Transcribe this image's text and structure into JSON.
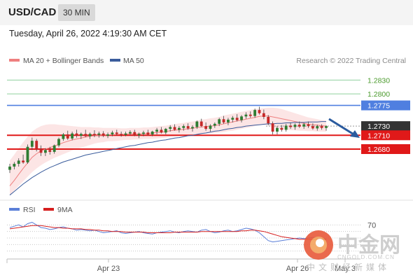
{
  "header": {
    "symbol": "USD/CAD",
    "timeframe": "30 MIN",
    "datetime": "Tuesday, April 26, 2022 4:19:30 AM CET"
  },
  "legend": {
    "ma20": "MA 20 + Bollinger Bands",
    "ma50": "MA 50",
    "credit": "Research © 2022 Trading Central",
    "rsi": "RSI",
    "ma9": "9MA"
  },
  "colors": {
    "ma20": "#ef7f7f",
    "band": "#fbdcdc",
    "ma50": "#3a5c9c",
    "green_level": "#8fd19e",
    "blue_level": "#4f7fe0",
    "red_level": "#e01919",
    "current": "#333333",
    "candle_up": "#2e7d32",
    "candle_down": "#c62828",
    "rsi": "#5b7fd8",
    "rsi_ma": "#d61f1f",
    "arrow": "#2b5b9e"
  },
  "watermark": {
    "brand": "中金网",
    "url": "CNGOLD.COM.CN",
    "sub": "中文财经新媒体"
  },
  "chart_data": [
    {
      "type": "candlestick",
      "ylim": [
        1.2575,
        1.2855
      ],
      "x_ticks": [
        "Apr 23",
        "Apr 26"
      ],
      "levels": [
        {
          "value": 1.283,
          "label": "1.2830",
          "kind": "green"
        },
        {
          "value": 1.28,
          "label": "1.2800",
          "kind": "green"
        },
        {
          "value": 1.2775,
          "label": "1.2775",
          "kind": "blue"
        },
        {
          "value": 1.273,
          "label": "1.2730",
          "kind": "current"
        },
        {
          "value": 1.271,
          "label": "1.2710",
          "kind": "red"
        },
        {
          "value": 1.268,
          "label": "1.2680",
          "kind": "red"
        }
      ],
      "ohlc": [
        [
          1.2635,
          1.2648,
          1.2628,
          1.2642
        ],
        [
          1.2642,
          1.2652,
          1.2636,
          1.2648
        ],
        [
          1.2648,
          1.266,
          1.2642,
          1.2655
        ],
        [
          1.2655,
          1.2668,
          1.2648,
          1.2651
        ],
        [
          1.2651,
          1.269,
          1.2648,
          1.2685
        ],
        [
          1.2685,
          1.2705,
          1.2678,
          1.2698
        ],
        [
          1.2698,
          1.2702,
          1.2675,
          1.268
        ],
        [
          1.268,
          1.2688,
          1.2665,
          1.2672
        ],
        [
          1.2672,
          1.2682,
          1.2665,
          1.2678
        ],
        [
          1.2678,
          1.2685,
          1.2668,
          1.2674
        ],
        [
          1.2674,
          1.269,
          1.267,
          1.2688
        ],
        [
          1.2688,
          1.2705,
          1.2684,
          1.2702
        ],
        [
          1.2702,
          1.2715,
          1.2698,
          1.2712
        ],
        [
          1.2712,
          1.272,
          1.27,
          1.2703
        ],
        [
          1.2703,
          1.2718,
          1.2699,
          1.2714
        ],
        [
          1.2714,
          1.2722,
          1.2705,
          1.2709
        ],
        [
          1.2709,
          1.2716,
          1.2702,
          1.2713
        ],
        [
          1.2713,
          1.2722,
          1.2706,
          1.2708
        ],
        [
          1.2708,
          1.2716,
          1.2702,
          1.2713
        ],
        [
          1.2713,
          1.2721,
          1.2706,
          1.2711
        ],
        [
          1.2711,
          1.2718,
          1.2705,
          1.2714
        ],
        [
          1.2714,
          1.2719,
          1.2706,
          1.2709
        ],
        [
          1.2709,
          1.2716,
          1.2704,
          1.2712
        ],
        [
          1.2712,
          1.272,
          1.2708,
          1.2716
        ],
        [
          1.2716,
          1.2722,
          1.271,
          1.2713
        ],
        [
          1.2713,
          1.2718,
          1.2707,
          1.2711
        ],
        [
          1.2711,
          1.2718,
          1.2708,
          1.2714
        ],
        [
          1.2714,
          1.2721,
          1.271,
          1.2717
        ],
        [
          1.2717,
          1.2722,
          1.2708,
          1.271
        ],
        [
          1.271,
          1.2716,
          1.2704,
          1.2713
        ],
        [
          1.2713,
          1.272,
          1.2708,
          1.2716
        ],
        [
          1.2716,
          1.2722,
          1.271,
          1.2712
        ],
        [
          1.2712,
          1.272,
          1.2708,
          1.2718
        ],
        [
          1.2718,
          1.2726,
          1.2712,
          1.2722
        ],
        [
          1.2722,
          1.2728,
          1.2714,
          1.2716
        ],
        [
          1.2716,
          1.2726,
          1.2712,
          1.2724
        ],
        [
          1.2724,
          1.2732,
          1.2718,
          1.2728
        ],
        [
          1.2728,
          1.2734,
          1.272,
          1.2722
        ],
        [
          1.2722,
          1.273,
          1.2716,
          1.2726
        ],
        [
          1.2726,
          1.2734,
          1.272,
          1.273
        ],
        [
          1.273,
          1.2736,
          1.2722,
          1.2725
        ],
        [
          1.2725,
          1.2732,
          1.2718,
          1.2728
        ],
        [
          1.2728,
          1.2742,
          1.2724,
          1.274
        ],
        [
          1.274,
          1.2746,
          1.2728,
          1.273
        ],
        [
          1.273,
          1.2738,
          1.272,
          1.2724
        ],
        [
          1.2724,
          1.2734,
          1.2718,
          1.2731
        ],
        [
          1.2731,
          1.2738,
          1.2726,
          1.2735
        ],
        [
          1.2735,
          1.2748,
          1.273,
          1.2745
        ],
        [
          1.2745,
          1.2752,
          1.2735,
          1.2738
        ],
        [
          1.2738,
          1.2748,
          1.2732,
          1.2744
        ],
        [
          1.2744,
          1.2752,
          1.2738,
          1.2748
        ],
        [
          1.2748,
          1.2756,
          1.274,
          1.2743
        ],
        [
          1.2743,
          1.2754,
          1.2738,
          1.2751
        ],
        [
          1.2751,
          1.276,
          1.2746,
          1.2755
        ],
        [
          1.2755,
          1.2762,
          1.2748,
          1.2752
        ],
        [
          1.2752,
          1.2768,
          1.2748,
          1.2765
        ],
        [
          1.2765,
          1.2772,
          1.2755,
          1.2758
        ],
        [
          1.2758,
          1.2766,
          1.2745,
          1.275
        ],
        [
          1.275,
          1.2754,
          1.2732,
          1.2736
        ],
        [
          1.2736,
          1.274,
          1.2712,
          1.2718
        ],
        [
          1.2718,
          1.273,
          1.2712,
          1.2726
        ],
        [
          1.2726,
          1.2732,
          1.2718,
          1.2722
        ],
        [
          1.2722,
          1.2735,
          1.2718,
          1.2731
        ],
        [
          1.2731,
          1.2738,
          1.2724,
          1.2728
        ],
        [
          1.2728,
          1.2736,
          1.2722,
          1.2733
        ],
        [
          1.2733,
          1.274,
          1.2726,
          1.2729
        ],
        [
          1.2729,
          1.2737,
          1.2724,
          1.2734
        ],
        [
          1.2734,
          1.274,
          1.2726,
          1.273
        ],
        [
          1.273,
          1.2736,
          1.2722,
          1.2725
        ],
        [
          1.2725,
          1.2733,
          1.272,
          1.273
        ],
        [
          1.273,
          1.2734,
          1.2722,
          1.2726
        ],
        [
          1.2726,
          1.2732,
          1.272,
          1.273
        ]
      ],
      "ma20": [
        1.26,
        1.2612,
        1.2625,
        1.2638,
        1.265,
        1.2662,
        1.267,
        1.2676,
        1.268,
        1.2683,
        1.2687,
        1.269,
        1.2694,
        1.2697,
        1.27,
        1.2702,
        1.2704,
        1.2706,
        1.2708,
        1.2709,
        1.271,
        1.271,
        1.2711,
        1.2711,
        1.2712,
        1.2712,
        1.2712,
        1.2713,
        1.2713,
        1.2713,
        1.2714,
        1.2714,
        1.2715,
        1.2716,
        1.2717,
        1.2718,
        1.272,
        1.2721,
        1.2722,
        1.2723,
        1.2724,
        1.2725,
        1.2727,
        1.2728,
        1.2729,
        1.273,
        1.2731,
        1.2733,
        1.2735,
        1.2737,
        1.2739,
        1.2741,
        1.2743,
        1.2745,
        1.2747,
        1.2749,
        1.2751,
        1.2752,
        1.2752,
        1.275,
        1.2748,
        1.2746,
        1.2744,
        1.2742,
        1.274,
        1.2738,
        1.2736,
        1.2734,
        1.2733,
        1.2732,
        1.2731,
        1.273
      ],
      "band_upper": [
        1.2655,
        1.2668,
        1.2682,
        1.2695,
        1.2707,
        1.2718,
        1.2725,
        1.273,
        1.2733,
        1.2734,
        1.2734,
        1.2733,
        1.2732,
        1.2731,
        1.273,
        1.2729,
        1.2728,
        1.2728,
        1.2728,
        1.2727,
        1.2727,
        1.2726,
        1.2726,
        1.2726,
        1.2726,
        1.2725,
        1.2725,
        1.2726,
        1.2726,
        1.2726,
        1.2727,
        1.2727,
        1.2728,
        1.2729,
        1.273,
        1.2731,
        1.2733,
        1.2734,
        1.2736,
        1.2737,
        1.2739,
        1.274,
        1.2742,
        1.2744,
        1.2745,
        1.2747,
        1.2748,
        1.275,
        1.2753,
        1.2755,
        1.2757,
        1.2759,
        1.2761,
        1.2763,
        1.2765,
        1.2767,
        1.2768,
        1.2769,
        1.277,
        1.277,
        1.2769,
        1.2767,
        1.2764,
        1.2761,
        1.2758,
        1.2755,
        1.2752,
        1.2749,
        1.2747,
        1.2745,
        1.2743,
        1.2742
      ],
      "band_lower": [
        1.258,
        1.259,
        1.26,
        1.261,
        1.262,
        1.263,
        1.2638,
        1.2645,
        1.2651,
        1.2656,
        1.2661,
        1.2665,
        1.2669,
        1.2673,
        1.2677,
        1.268,
        1.2683,
        1.2686,
        1.2689,
        1.2692,
        1.2694,
        1.2695,
        1.2697,
        1.2697,
        1.2698,
        1.2699,
        1.27,
        1.27,
        1.2701,
        1.2701,
        1.2702,
        1.2702,
        1.2702,
        1.2703,
        1.2704,
        1.2705,
        1.2707,
        1.2708,
        1.2709,
        1.271,
        1.271,
        1.2711,
        1.2712,
        1.2713,
        1.2714,
        1.2714,
        1.2715,
        1.2716,
        1.2717,
        1.2719,
        1.272,
        1.2722,
        1.2724,
        1.2726,
        1.2728,
        1.273,
        1.2732,
        1.2733,
        1.2732,
        1.2728,
        1.2725,
        1.2723,
        1.2722,
        1.2721,
        1.2721,
        1.272,
        1.272,
        1.2719,
        1.2719,
        1.2718,
        1.2718,
        1.2718
      ],
      "ma50": [
        1.258,
        1.2588,
        1.2596,
        1.2604,
        1.2611,
        1.2618,
        1.2624,
        1.263,
        1.2635,
        1.264,
        1.2644,
        1.2648,
        1.2652,
        1.2655,
        1.2658,
        1.2661,
        1.2664,
        1.2667,
        1.2669,
        1.2671,
        1.2673,
        1.2675,
        1.2677,
        1.2679,
        1.2681,
        1.2683,
        1.2685,
        1.2687,
        1.2688,
        1.269,
        1.2692,
        1.2694,
        1.2695,
        1.2697,
        1.2699,
        1.27,
        1.2702,
        1.2704,
        1.2705,
        1.2707,
        1.2709,
        1.271,
        1.2712,
        1.2714,
        1.2715,
        1.2717,
        1.2719,
        1.272,
        1.2722,
        1.2724,
        1.2725,
        1.2727,
        1.2728,
        1.273,
        1.2731,
        1.2732,
        1.2733,
        1.2734,
        1.2735,
        1.2735,
        1.2736,
        1.2736,
        1.2737,
        1.2737,
        1.2738,
        1.2738,
        1.2738,
        1.2739,
        1.2739,
        1.2739,
        1.274,
        1.274
      ]
    },
    {
      "type": "line",
      "ylim": [
        20,
        80
      ],
      "y_ticks": [
        70
      ],
      "x_ticks": [
        "Apr 23",
        "Apr 26",
        "May 3"
      ],
      "series": [
        {
          "name": "RSI",
          "values": [
            66,
            68,
            70,
            67,
            72,
            74,
            70,
            66,
            65,
            63,
            64,
            66,
            67,
            65,
            64,
            62,
            63,
            62,
            61,
            62,
            60,
            58,
            59,
            60,
            61,
            58,
            57,
            58,
            59,
            60,
            58,
            57,
            56,
            58,
            59,
            60,
            61,
            59,
            58,
            60,
            61,
            60,
            59,
            62,
            63,
            60,
            58,
            59,
            61,
            62,
            60,
            61,
            63,
            65,
            64,
            62,
            58,
            52,
            46,
            44,
            45,
            46,
            47,
            48,
            49,
            50,
            49,
            50,
            51,
            50,
            49,
            48
          ]
        },
        {
          "name": "9MA",
          "values": [
            64,
            65,
            66,
            67,
            68,
            69,
            69,
            69,
            68,
            67,
            66,
            66,
            65,
            65,
            64,
            64,
            64,
            63,
            63,
            62,
            62,
            61,
            61,
            60,
            60,
            60,
            59,
            59,
            59,
            59,
            59,
            58,
            58,
            58,
            58,
            58,
            58,
            59,
            59,
            59,
            59,
            59,
            59,
            60,
            60,
            60,
            60,
            60,
            60,
            60,
            60,
            60,
            61,
            61,
            62,
            62,
            61,
            60,
            58,
            56,
            54,
            52,
            51,
            50,
            49,
            48,
            48,
            48,
            48,
            48,
            48,
            48
          ]
        }
      ]
    }
  ]
}
